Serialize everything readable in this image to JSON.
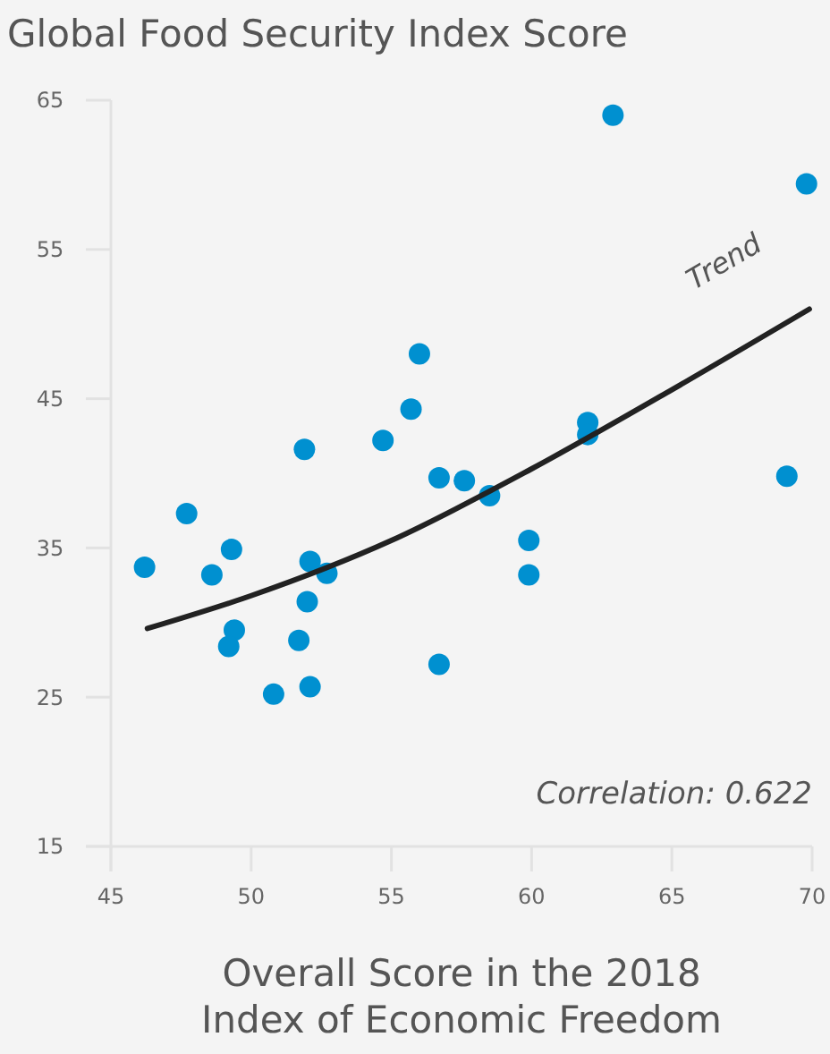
{
  "chart_data": {
    "type": "scatter",
    "title": "Global Food Security Index Score",
    "xlabel": "Overall Score in the 2018 Index of Economic Freedom",
    "xlim": [
      45,
      70
    ],
    "xticks": [
      45,
      50,
      55,
      60,
      65,
      70
    ],
    "ylim": [
      15,
      65
    ],
    "yticks": [
      15,
      25,
      35,
      45,
      55,
      65
    ],
    "grid": false,
    "series": [
      {
        "color": "#0090d0",
        "marker": "circle",
        "x": [
          46.2,
          47.7,
          48.6,
          49.3,
          49.4,
          49.2,
          50.8,
          51.7,
          52.0,
          52.1,
          51.9,
          52.1,
          52.7,
          54.7,
          55.7,
          56.0,
          56.7,
          56.7,
          57.6,
          58.5,
          59.9,
          59.9,
          62.0,
          62.0,
          62.9,
          69.1,
          69.8
        ],
        "values": [
          33.7,
          37.3,
          33.2,
          34.9,
          29.5,
          28.4,
          25.2,
          28.8,
          31.4,
          25.7,
          41.6,
          34.1,
          33.3,
          42.2,
          44.3,
          48.0,
          39.7,
          27.2,
          39.5,
          38.5,
          35.5,
          33.2,
          43.4,
          42.6,
          64.0,
          39.8,
          59.4
        ]
      },
      {
        "type": "line",
        "name": "Trend",
        "color": "#222222",
        "line_style": "solid",
        "x": [
          46.3,
          50,
          55,
          60,
          65,
          69.9
        ],
        "values": [
          29.6,
          31.8,
          35.5,
          40.3,
          45.6,
          51.0
        ]
      }
    ],
    "annotations": [
      "Correlation: 0.622"
    ]
  }
}
